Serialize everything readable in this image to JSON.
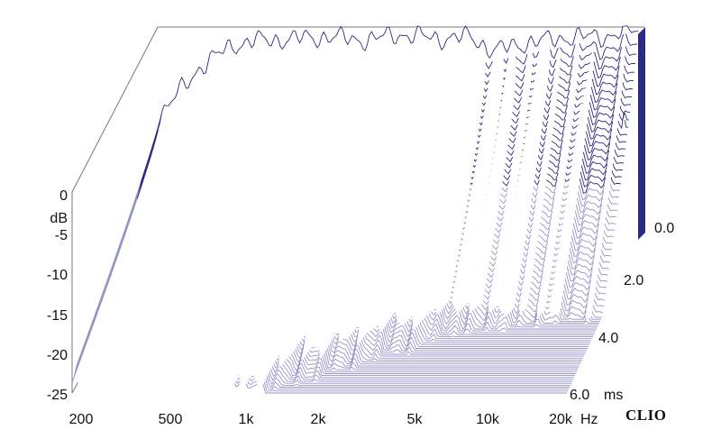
{
  "chart_data": {
    "type": "waterfall",
    "x_axis": {
      "unit": "Hz",
      "scale": "log",
      "range": [
        200,
        20000
      ],
      "ticks": [
        {
          "value": 200,
          "label": "200"
        },
        {
          "value": 500,
          "label": "500"
        },
        {
          "value": 1000,
          "label": "1k"
        },
        {
          "value": 2000,
          "label": "2k"
        },
        {
          "value": 5000,
          "label": "5k"
        },
        {
          "value": 10000,
          "label": "10k"
        },
        {
          "value": 20000,
          "label": "20k"
        }
      ]
    },
    "y_axis": {
      "unit": "dB",
      "range": [
        -25,
        0
      ],
      "ticks": [
        0,
        -5,
        -10,
        -15,
        -20,
        -25
      ]
    },
    "z_axis": {
      "unit": "ms",
      "range": [
        0,
        6
      ],
      "ticks": [
        {
          "value": 0,
          "label": "0.0"
        },
        {
          "value": 2,
          "label": "2.0"
        },
        {
          "value": 4,
          "label": "4.0"
        },
        {
          "value": 6,
          "label": "6.0"
        }
      ]
    },
    "slice_count": 80,
    "colors": {
      "trace": "#2b2b80",
      "floor": "#9595c8",
      "wall": "#2b2b80"
    },
    "series": [
      {
        "x": [
          200,
          300,
          400,
          500,
          700,
          1000,
          1500,
          2000,
          3000,
          4000,
          5000,
          7000,
          10000,
          15000,
          20000
        ],
        "values": [
          -10.2,
          -4,
          -1.5,
          -0.8,
          -0.6,
          -0.3,
          -0.7,
          0,
          -0.5,
          -0.3,
          -2,
          -1,
          -0.4,
          -0.2,
          0.6
        ],
        "time_ms": 0
      }
    ],
    "brand": "CLIO"
  },
  "labels": {
    "x_ticks": [
      "200",
      "500",
      "1k",
      "2k",
      "5k",
      "10k",
      "20k"
    ],
    "x_unit": "Hz",
    "y_ticks": [
      "0",
      "-5",
      "-10",
      "-15",
      "-20",
      "-25"
    ],
    "y_unit": "dB",
    "z_ticks": [
      "0.0",
      "2.0",
      "4.0",
      "6.0"
    ],
    "z_unit": "ms",
    "brand": "CLIO"
  }
}
